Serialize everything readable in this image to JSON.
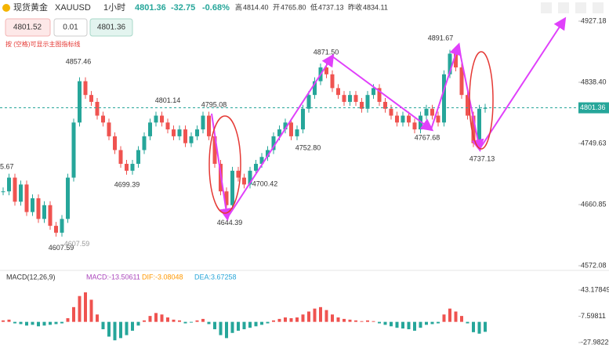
{
  "header": {
    "symbol_name": "现货黄金",
    "symbol": "XAUUSD",
    "interval": "1小时",
    "price": 4801.36,
    "change": -32.75,
    "change_pct": "-0.68%",
    "stats": [
      {
        "label": "高",
        "value": "4814.40"
      },
      {
        "label": "开",
        "value": "4765.80"
      },
      {
        "label": "低",
        "value": "4737.13"
      },
      {
        "label": "昨收",
        "value": "4834.11"
      }
    ]
  },
  "order": {
    "bid": "4801.52",
    "qty": "0.01",
    "ask": "4801.36"
  },
  "hint": "按 (空格)可显示主图指标线",
  "edge_label": "5.67",
  "chart_data": {
    "type": "candlestick",
    "up_color": "#26a69a",
    "down_color": "#ef5350",
    "closes": [
      4680,
      4700,
      4665,
      4690,
      4650,
      4670,
      4640,
      4660,
      4630,
      4620,
      4640,
      4700,
      4780,
      4840,
      4820,
      4810,
      4790,
      4780,
      4760,
      4740,
      4720,
      4710,
      4720,
      4740,
      4760,
      4780,
      4790,
      4780,
      4770,
      4760,
      4770,
      4750,
      4760,
      4770,
      4790,
      4760,
      4720,
      4680,
      4660,
      4710,
      4700,
      4690,
      4710,
      4720,
      4730,
      4740,
      4760,
      4770,
      4780,
      4760,
      4770,
      4800,
      4820,
      4840,
      4860,
      4850,
      4830,
      4820,
      4810,
      4820,
      4810,
      4800,
      4820,
      4830,
      4810,
      4800,
      4790,
      4780,
      4790,
      4780,
      4770,
      4790,
      4800,
      4790,
      4780,
      4850,
      4880,
      4860,
      4820,
      4790,
      4750,
      4800,
      4801.36
    ],
    "last_price": 4801.36,
    "ylim": [
      4572.08,
      4927.18
    ],
    "yticks": [
      4927.18,
      {
        "value": 4838.4,
        "label": "4838.40"
      },
      4749.63,
      4660.85,
      4572.08
    ],
    "annotations": [
      {
        "value": 4857.46,
        "label": "4857.46"
      },
      {
        "value": 4607.59,
        "label": "4607.59"
      },
      {
        "value": 4607.59,
        "label": "4607.59"
      },
      {
        "value": 4699.39,
        "label": "4699.39"
      },
      {
        "value": 4801.14,
        "label": "4801.14"
      },
      {
        "value": 4795.08,
        "label": "4795.08"
      },
      {
        "value": 4644.39,
        "label": "4644.39"
      },
      {
        "value": 4700.42,
        "label": "4700.42"
      },
      {
        "value": 4752.8,
        "label": "4752.80"
      },
      {
        "value": 4871.5,
        "label": "4871.50"
      },
      {
        "value": 4767.68,
        "label": "4767.68"
      },
      {
        "value": 4891.67,
        "label": "4891.67"
      },
      {
        "value": 4737.13,
        "label": "4737.13"
      }
    ]
  },
  "macd": {
    "title": "MACD(12,26,9)",
    "macd_label": "MACD:-13.50611",
    "dif_label": "DIF:-3.08048",
    "dea_label": "DEA:3.67258",
    "hist": [
      2,
      3,
      -2,
      -3,
      -5,
      -4,
      -6,
      -5,
      -4,
      -3,
      -2,
      5,
      20,
      35,
      40,
      30,
      10,
      -10,
      -20,
      -25,
      -22,
      -18,
      -12,
      -5,
      2,
      8,
      12,
      10,
      6,
      3,
      2,
      -2,
      -1,
      2,
      4,
      -3,
      -10,
      -18,
      -22,
      -15,
      -12,
      -10,
      -8,
      -6,
      -4,
      -2,
      2,
      4,
      6,
      5,
      6,
      10,
      14,
      18,
      20,
      16,
      10,
      6,
      4,
      3,
      2,
      1,
      2,
      1,
      -2,
      -4,
      -6,
      -8,
      -9,
      -10,
      -12,
      -8,
      -4,
      -3,
      -2,
      10,
      18,
      14,
      8,
      -2,
      -14,
      -16,
      -13.5
    ],
    "ylim": [
      -27.9822,
      43.17849
    ],
    "yticks": [
      43.17849,
      7.59811,
      {
        "value": -27.9822,
        "label": "-27.98220"
      }
    ]
  }
}
